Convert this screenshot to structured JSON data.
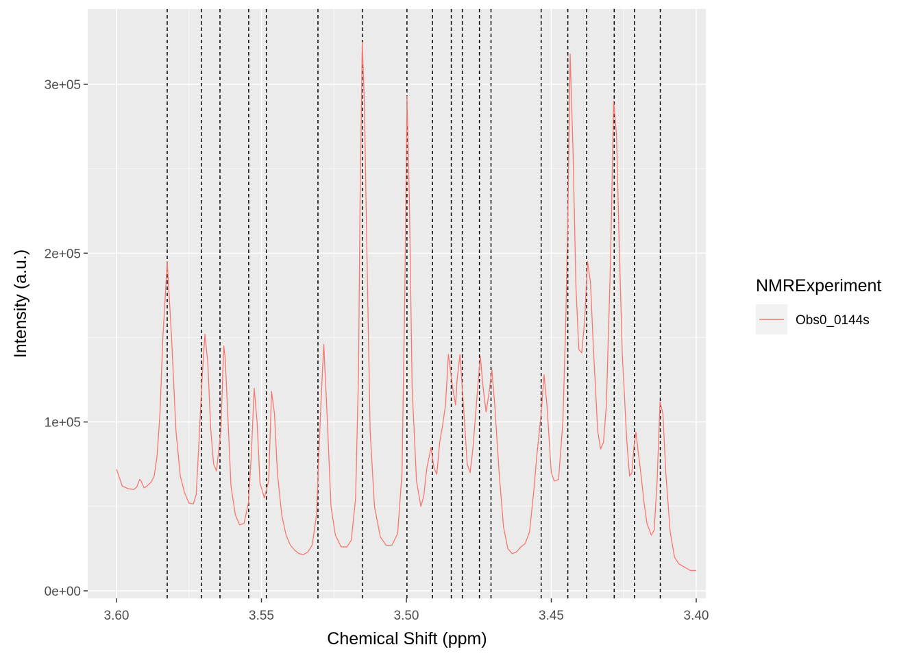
{
  "chart_data": {
    "type": "line",
    "title": "",
    "xlabel": "Chemical Shift (ppm)",
    "ylabel": "Intensity (a.u.)",
    "x_reversed": true,
    "xlim": [
      3.6,
      3.4
    ],
    "ylim": [
      0,
      300000
    ],
    "x_ticks": [
      3.6,
      3.55,
      3.5,
      3.45,
      3.4
    ],
    "x_tick_labels": [
      "3.60",
      "3.55",
      "3.50",
      "3.45",
      "3.40"
    ],
    "y_ticks": [
      0,
      100000,
      200000,
      300000
    ],
    "y_tick_labels": [
      "0e+00",
      "1e+05",
      "2e+05",
      "3e+05"
    ],
    "grid": true,
    "legend": {
      "title": "NMRExperiment",
      "position": "right",
      "entries": [
        {
          "name": "Obs0_0144s",
          "color": "#F8766D"
        }
      ]
    },
    "series": [
      {
        "name": "Obs0_0144s",
        "color": "#F8766D",
        "points": [
          [
            3.6,
            72000
          ],
          [
            3.598,
            62000
          ],
          [
            3.596,
            60500
          ],
          [
            3.594,
            60000
          ],
          [
            3.593,
            61500
          ],
          [
            3.592,
            66000
          ],
          [
            3.5915,
            65000
          ],
          [
            3.5905,
            61000
          ],
          [
            3.5895,
            62000
          ],
          [
            3.588,
            64500
          ],
          [
            3.587,
            68000
          ],
          [
            3.586,
            80000
          ],
          [
            3.585,
            105000
          ],
          [
            3.584,
            150000
          ],
          [
            3.5825,
            195000
          ],
          [
            3.581,
            150000
          ],
          [
            3.5795,
            95000
          ],
          [
            3.578,
            68000
          ],
          [
            3.5765,
            58000
          ],
          [
            3.575,
            52000
          ],
          [
            3.5735,
            51500
          ],
          [
            3.5725,
            57000
          ],
          [
            3.5715,
            90000
          ],
          [
            3.5705,
            125000
          ],
          [
            3.5695,
            152000
          ],
          [
            3.5685,
            135000
          ],
          [
            3.5675,
            96000
          ],
          [
            3.5665,
            75000
          ],
          [
            3.5655,
            71000
          ],
          [
            3.564,
            95000
          ],
          [
            3.563,
            145000
          ],
          [
            3.5625,
            138000
          ],
          [
            3.5615,
            100000
          ],
          [
            3.5605,
            62000
          ],
          [
            3.559,
            45000
          ],
          [
            3.5575,
            39000
          ],
          [
            3.556,
            40000
          ],
          [
            3.5545,
            52000
          ],
          [
            3.5535,
            80000
          ],
          [
            3.5525,
            120000
          ],
          [
            3.5515,
            100000
          ],
          [
            3.5505,
            64000
          ],
          [
            3.549,
            55000
          ],
          [
            3.5475,
            65000
          ],
          [
            3.5465,
            118000
          ],
          [
            3.5455,
            105000
          ],
          [
            3.5445,
            70000
          ],
          [
            3.543,
            45000
          ],
          [
            3.5415,
            33000
          ],
          [
            3.54,
            27000
          ],
          [
            3.5385,
            24000
          ],
          [
            3.537,
            22000
          ],
          [
            3.5355,
            21500
          ],
          [
            3.534,
            23000
          ],
          [
            3.5325,
            27000
          ],
          [
            3.531,
            45000
          ],
          [
            3.5295,
            110000
          ],
          [
            3.5285,
            146000
          ],
          [
            3.5275,
            110000
          ],
          [
            3.526,
            50000
          ],
          [
            3.5245,
            33000
          ],
          [
            3.5225,
            26000
          ],
          [
            3.5205,
            26000
          ],
          [
            3.519,
            30000
          ],
          [
            3.5175,
            55000
          ],
          [
            3.5165,
            130000
          ],
          [
            3.516,
            225000
          ],
          [
            3.5152,
            325000
          ],
          [
            3.5145,
            290000
          ],
          [
            3.5135,
            190000
          ],
          [
            3.5125,
            95000
          ],
          [
            3.511,
            50000
          ],
          [
            3.509,
            32000
          ],
          [
            3.507,
            27000
          ],
          [
            3.505,
            27000
          ],
          [
            3.503,
            34000
          ],
          [
            3.5015,
            70000
          ],
          [
            3.5005,
            180000
          ],
          [
            3.4998,
            293000
          ],
          [
            3.499,
            235000
          ],
          [
            3.498,
            120000
          ],
          [
            3.4965,
            65000
          ],
          [
            3.495,
            50000
          ],
          [
            3.494,
            56000
          ],
          [
            3.493,
            72000
          ],
          [
            3.4915,
            85000
          ],
          [
            3.4905,
            73000
          ],
          [
            3.4895,
            69000
          ],
          [
            3.4885,
            88000
          ],
          [
            3.4875,
            98000
          ],
          [
            3.4865,
            110000
          ],
          [
            3.4855,
            140000
          ],
          [
            3.484,
            120000
          ],
          [
            3.483,
            110000
          ],
          [
            3.4825,
            125000
          ],
          [
            3.4815,
            140000
          ],
          [
            3.4805,
            115000
          ],
          [
            3.479,
            75000
          ],
          [
            3.478,
            70000
          ],
          [
            3.477,
            85000
          ],
          [
            3.4755,
            118000
          ],
          [
            3.4745,
            139000
          ],
          [
            3.4735,
            120000
          ],
          [
            3.4725,
            106000
          ],
          [
            3.4715,
            117000
          ],
          [
            3.4705,
            131000
          ],
          [
            3.4695,
            110000
          ],
          [
            3.468,
            70000
          ],
          [
            3.4665,
            38000
          ],
          [
            3.465,
            25000
          ],
          [
            3.4635,
            22000
          ],
          [
            3.462,
            23000
          ],
          [
            3.4605,
            26000
          ],
          [
            3.459,
            28000
          ],
          [
            3.4575,
            35000
          ],
          [
            3.456,
            60000
          ],
          [
            3.455,
            80000
          ],
          [
            3.4535,
            105000
          ],
          [
            3.4525,
            128000
          ],
          [
            3.4515,
            110000
          ],
          [
            3.45,
            70000
          ],
          [
            3.449,
            65000
          ],
          [
            3.4475,
            66000
          ],
          [
            3.446,
            100000
          ],
          [
            3.445,
            160000
          ],
          [
            3.4442,
            230000
          ],
          [
            3.4435,
            318000
          ],
          [
            3.4425,
            260000
          ],
          [
            3.4415,
            180000
          ],
          [
            3.4405,
            143000
          ],
          [
            3.4395,
            141000
          ],
          [
            3.4385,
            160000
          ],
          [
            3.4375,
            195000
          ],
          [
            3.4365,
            183000
          ],
          [
            3.4355,
            145000
          ],
          [
            3.434,
            95000
          ],
          [
            3.433,
            84000
          ],
          [
            3.432,
            88000
          ],
          [
            3.431,
            110000
          ],
          [
            3.4295,
            200000
          ],
          [
            3.4285,
            290000
          ],
          [
            3.4275,
            270000
          ],
          [
            3.4265,
            200000
          ],
          [
            3.4255,
            140000
          ],
          [
            3.424,
            90000
          ],
          [
            3.423,
            68000
          ],
          [
            3.4222,
            70000
          ],
          [
            3.4215,
            85000
          ],
          [
            3.4208,
            94000
          ],
          [
            3.42,
            82000
          ],
          [
            3.419,
            68000
          ],
          [
            3.418,
            52000
          ],
          [
            3.417,
            40000
          ],
          [
            3.4155,
            33000
          ],
          [
            3.4145,
            36000
          ],
          [
            3.4135,
            65000
          ],
          [
            3.4125,
            112000
          ],
          [
            3.4115,
            105000
          ],
          [
            3.4105,
            70000
          ],
          [
            3.409,
            35000
          ],
          [
            3.4075,
            20000
          ],
          [
            3.406,
            16000
          ],
          [
            3.404,
            14000
          ],
          [
            3.402,
            12000
          ],
          [
            3.4,
            12000
          ]
        ]
      }
    ],
    "reference_lines": [
      3.5825,
      3.5707,
      3.5643,
      3.5544,
      3.5483,
      3.5305,
      3.5152,
      3.4998,
      3.491,
      3.4845,
      3.4807,
      3.4748,
      3.4708,
      3.4535,
      3.4443,
      3.4378,
      3.4283,
      3.4213,
      3.4124
    ]
  }
}
